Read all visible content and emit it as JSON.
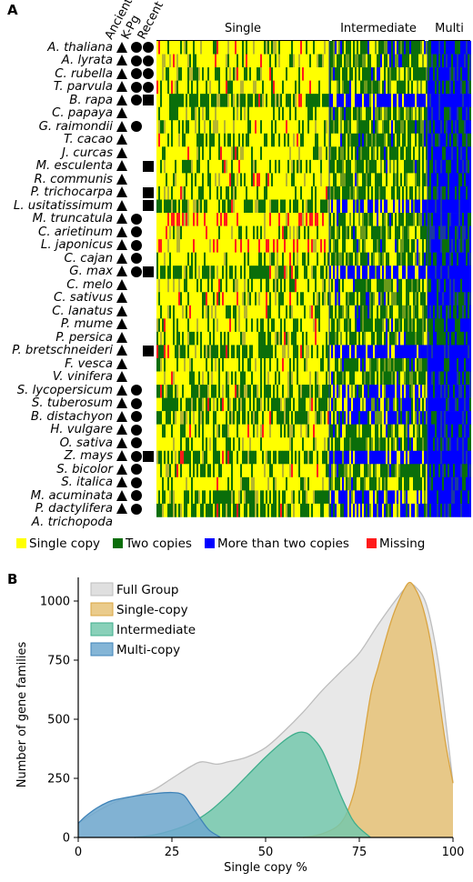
{
  "panel_a": {
    "letter": "A",
    "column_headers": [
      "Ancient",
      "K-Pg",
      "Recent"
    ],
    "sections": [
      "Single",
      "Intermediate",
      "Multi"
    ],
    "species": [
      {
        "name": "A. thaliana",
        "marks": [
          "tri",
          "circ",
          "circ"
        ]
      },
      {
        "name": "A. lyrata",
        "marks": [
          "tri",
          "circ",
          "circ"
        ]
      },
      {
        "name": "C. rubella",
        "marks": [
          "tri",
          "circ",
          "circ"
        ]
      },
      {
        "name": "T. parvula",
        "marks": [
          "tri",
          "circ",
          "circ"
        ]
      },
      {
        "name": "B. rapa",
        "marks": [
          "tri",
          "circ",
          "circ",
          "sq"
        ]
      },
      {
        "name": "C. papaya",
        "marks": [
          "tri"
        ]
      },
      {
        "name": "G. raimondii",
        "marks": [
          "tri",
          "circ"
        ]
      },
      {
        "name": "T. cacao",
        "marks": [
          "tri"
        ]
      },
      {
        "name": "J. curcas",
        "marks": [
          "tri"
        ]
      },
      {
        "name": "M. esculenta",
        "marks": [
          "tri",
          "",
          "sq"
        ]
      },
      {
        "name": "R. communis",
        "marks": [
          "tri"
        ]
      },
      {
        "name": "P. trichocarpa",
        "marks": [
          "tri",
          "",
          "sq"
        ]
      },
      {
        "name": "L. usitatissimum",
        "marks": [
          "tri",
          "",
          "sq"
        ]
      },
      {
        "name": "M. truncatula",
        "marks": [
          "tri",
          "circ"
        ]
      },
      {
        "name": "C. arietinum",
        "marks": [
          "tri",
          "circ"
        ]
      },
      {
        "name": "L. japonicus",
        "marks": [
          "tri",
          "circ"
        ]
      },
      {
        "name": "C. cajan",
        "marks": [
          "tri",
          "circ"
        ]
      },
      {
        "name": "G. max",
        "marks": [
          "tri",
          "circ",
          "sq"
        ]
      },
      {
        "name": "C. melo",
        "marks": [
          "tri"
        ]
      },
      {
        "name": "C. sativus",
        "marks": [
          "tri"
        ]
      },
      {
        "name": "C. lanatus",
        "marks": [
          "tri"
        ]
      },
      {
        "name": "P. mume",
        "marks": [
          "tri"
        ]
      },
      {
        "name": "P. persica",
        "marks": [
          "tri"
        ]
      },
      {
        "name": "P. bretschneideri",
        "marks": [
          "tri",
          "",
          "sq"
        ]
      },
      {
        "name": "F. vesca",
        "marks": [
          "tri"
        ]
      },
      {
        "name": "V. vinifera",
        "marks": [
          "tri"
        ]
      },
      {
        "name": "S. lycopersicum",
        "marks": [
          "tri",
          "circ"
        ]
      },
      {
        "name": "S. tuberosum",
        "marks": [
          "tri",
          "circ"
        ]
      },
      {
        "name": "B. distachyon",
        "marks": [
          "tri",
          "circ"
        ]
      },
      {
        "name": "H. vulgare",
        "marks": [
          "tri",
          "circ"
        ]
      },
      {
        "name": "O. sativa",
        "marks": [
          "tri",
          "circ"
        ]
      },
      {
        "name": "Z. mays",
        "marks": [
          "tri",
          "circ",
          "sq"
        ]
      },
      {
        "name": "S. bicolor",
        "marks": [
          "tri",
          "circ"
        ]
      },
      {
        "name": "S. italica",
        "marks": [
          "tri",
          "circ"
        ]
      },
      {
        "name": "M. acuminata",
        "marks": [
          "tri",
          "circ"
        ]
      },
      {
        "name": "P. dactylifera",
        "marks": [
          "tri",
          "circ"
        ]
      },
      {
        "name": "A. trichopoda",
        "marks": []
      }
    ],
    "legend": [
      {
        "label": "Single copy",
        "color": "#ffff00"
      },
      {
        "label": "Two copies",
        "color": "#0a6e0a"
      },
      {
        "label": "More than two copies",
        "color": "#0000ff"
      },
      {
        "label": "Missing",
        "color": "#ff1a1a"
      }
    ]
  },
  "panel_b": {
    "letter": "B"
  },
  "chart_data": [
    {
      "type": "heatmap",
      "rows": [
        "A. thaliana",
        "A. lyrata",
        "C. rubella",
        "T. parvula",
        "B. rapa",
        "C. papaya",
        "G. raimondii",
        "T. cacao",
        "J. curcas",
        "M. esculenta",
        "R. communis",
        "P. trichocarpa",
        "L. usitatissimum",
        "M. truncatula",
        "C. arietinum",
        "L. japonicus",
        "C. cajan",
        "G. max",
        "C. melo",
        "C. sativus",
        "C. lanatus",
        "P. mume",
        "P. persica",
        "P. bretschneideri",
        "F. vesca",
        "V. vinifera",
        "S. lycopersicum",
        "S. tuberosum",
        "B. distachyon",
        "H. vulgare",
        "O. sativa",
        "Z. mays",
        "S. bicolor",
        "S. italica",
        "M. acuminata",
        "P. dactylifera",
        "A. trichopoda"
      ],
      "column_groups": [
        "Single",
        "Intermediate",
        "Multi"
      ],
      "categories": [
        "Single copy",
        "Two copies",
        "More than two copies",
        "Missing"
      ],
      "colors": [
        "#ffff00",
        "#0a6e0a",
        "#0000ff",
        "#ff1a1a"
      ]
    },
    {
      "type": "area",
      "xlabel": "Single copy %",
      "ylabel": "Number of gene families",
      "xlim": [
        0,
        100
      ],
      "ylim": [
        0,
        1100
      ],
      "xticks": [
        0,
        25,
        50,
        75,
        100
      ],
      "yticks": [
        0,
        250,
        500,
        750,
        1000
      ],
      "legend_position": "top-left",
      "series": [
        {
          "name": "Full Group",
          "color": "#d9d9d9",
          "stroke": "#bdbdbd",
          "x": [
            0,
            5,
            10,
            15,
            20,
            25,
            30,
            33,
            37,
            40,
            45,
            50,
            55,
            60,
            65,
            70,
            75,
            80,
            85,
            88,
            90,
            93,
            96,
            98,
            100
          ],
          "y": [
            60,
            110,
            150,
            175,
            200,
            250,
            300,
            320,
            310,
            320,
            340,
            380,
            450,
            530,
            620,
            700,
            780,
            900,
            1010,
            1065,
            1060,
            980,
            750,
            500,
            230
          ]
        },
        {
          "name": "Single-copy",
          "color": "#e6c277",
          "stroke": "#d9a441",
          "x": [
            60,
            65,
            70,
            73,
            75,
            78,
            80,
            83,
            85,
            88,
            90,
            92,
            94,
            96,
            98,
            100
          ],
          "y": [
            0,
            15,
            60,
            160,
            300,
            600,
            720,
            890,
            980,
            1075,
            1050,
            970,
            830,
            620,
            400,
            230
          ]
        },
        {
          "name": "Intermediate",
          "color": "#74c8ad",
          "stroke": "#3fae8c",
          "x": [
            15,
            20,
            25,
            30,
            35,
            40,
            45,
            50,
            55,
            58,
            60,
            62,
            65,
            68,
            70,
            73,
            75,
            78
          ],
          "y": [
            0,
            10,
            30,
            60,
            110,
            180,
            260,
            340,
            410,
            440,
            445,
            430,
            370,
            260,
            180,
            80,
            40,
            0
          ]
        },
        {
          "name": "Multi-copy",
          "color": "#6fa8cf",
          "stroke": "#3f83b8",
          "x": [
            0,
            2,
            5,
            8,
            10,
            15,
            20,
            25,
            28,
            30,
            33,
            35,
            38
          ],
          "y": [
            60,
            90,
            125,
            150,
            160,
            175,
            185,
            190,
            180,
            140,
            70,
            30,
            0
          ]
        }
      ]
    }
  ]
}
